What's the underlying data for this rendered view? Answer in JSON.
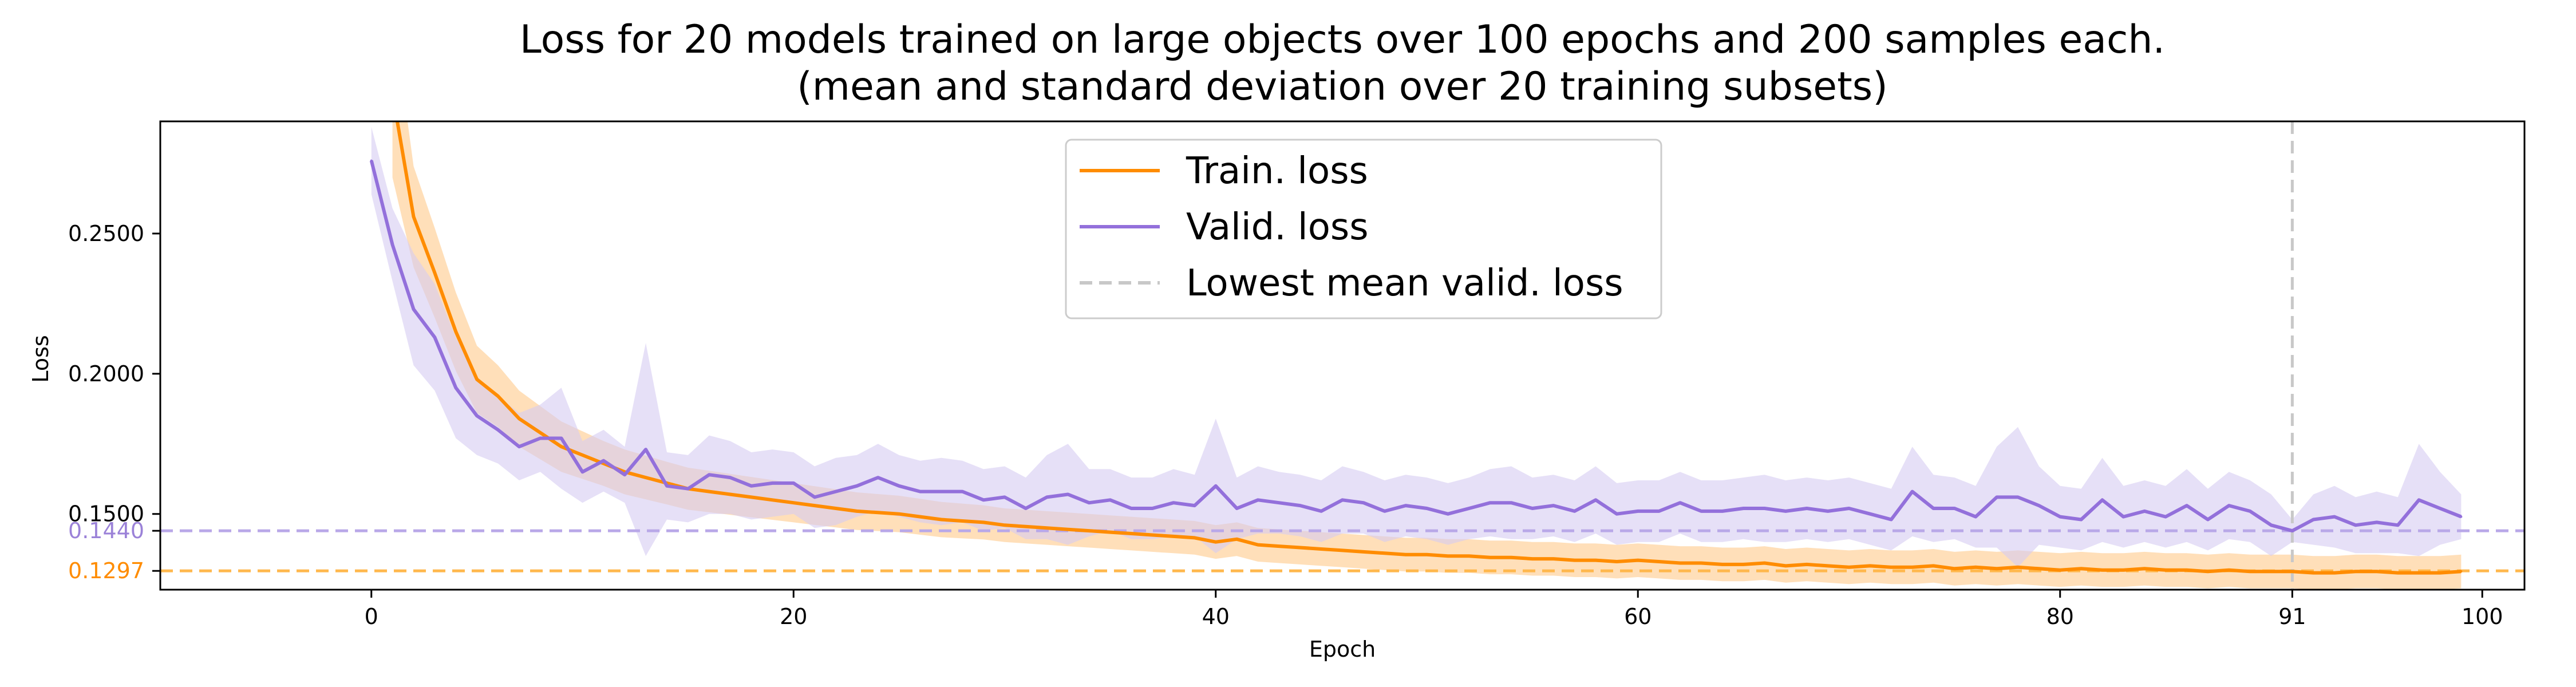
{
  "chart_data": {
    "type": "line",
    "title_line1": "Loss for 20 models trained on large objects over 100 epochs and 200 samples each.",
    "title_line2": "(mean and standard deviation over 20 training subsets)",
    "xlabel": "Epoch",
    "ylabel": "Loss",
    "xlim": [
      -10,
      102
    ],
    "ylim": [
      0.123,
      0.29
    ],
    "x_ticks": [
      0,
      20,
      40,
      60,
      80,
      91,
      100
    ],
    "x_tick_labels": [
      "0",
      "20",
      "40",
      "60",
      "80",
      "91",
      "100"
    ],
    "y_ticks": [
      0.25,
      0.2,
      0.15
    ],
    "y_tick_labels": [
      "0.2500",
      "0.2000",
      "0.1500"
    ],
    "y_ref_ticks": [
      {
        "label": "0.1440",
        "value": 0.144,
        "color": "#9b82d8"
      },
      {
        "label": "0.1297",
        "value": 0.1297,
        "color": "#ff8c00"
      }
    ],
    "grid": false,
    "legend_placement": "top-center",
    "legend": [
      {
        "label": "Train. loss",
        "color": "#ff8c00",
        "style": "solid"
      },
      {
        "label": "Valid. loss",
        "color": "#9370db",
        "style": "solid"
      },
      {
        "label": "Lowest mean valid. loss",
        "color": "#c8c8c8",
        "style": "dashed"
      }
    ],
    "hlines": [
      {
        "value": 0.144,
        "color": "#b9a8e8",
        "style": "dashed"
      },
      {
        "value": 0.1297,
        "color": "#ffb84d",
        "style": "dashed"
      }
    ],
    "vlines": [
      {
        "value": 91,
        "color": "#c8c8c8",
        "style": "dashed"
      }
    ],
    "series": [
      {
        "name": "Train. loss",
        "color": "#ff8c00",
        "band_color": "#ffc98a",
        "x": [
          1,
          2,
          3,
          4,
          5,
          6,
          7,
          8,
          9,
          10,
          11,
          12,
          13,
          14,
          15,
          16,
          17,
          18,
          19,
          20,
          21,
          22,
          23,
          24,
          25,
          26,
          27,
          28,
          29,
          30,
          31,
          32,
          33,
          34,
          35,
          36,
          37,
          38,
          39,
          40,
          41,
          42,
          43,
          44,
          45,
          46,
          47,
          48,
          49,
          50,
          51,
          52,
          53,
          54,
          55,
          56,
          57,
          58,
          59,
          60,
          61,
          62,
          63,
          64,
          65,
          66,
          67,
          68,
          69,
          70,
          71,
          72,
          73,
          74,
          75,
          76,
          77,
          78,
          79,
          80,
          81,
          82,
          83,
          84,
          85,
          86,
          87,
          88,
          89,
          90,
          91,
          92,
          93,
          94,
          95,
          96,
          97,
          98,
          99
        ],
        "y": [
          0.3,
          0.256,
          0.236,
          0.215,
          0.198,
          0.192,
          0.184,
          0.179,
          0.174,
          0.171,
          0.168,
          0.165,
          0.163,
          0.161,
          0.159,
          0.158,
          0.157,
          0.156,
          0.155,
          0.154,
          0.153,
          0.152,
          0.151,
          0.1505,
          0.15,
          0.149,
          0.148,
          0.1475,
          0.147,
          0.146,
          0.1455,
          0.145,
          0.1445,
          0.144,
          0.1435,
          0.143,
          0.1425,
          0.142,
          0.1415,
          0.14,
          0.141,
          0.139,
          0.1385,
          0.138,
          0.1375,
          0.137,
          0.1365,
          0.136,
          0.1355,
          0.1355,
          0.135,
          0.135,
          0.1345,
          0.1345,
          0.134,
          0.134,
          0.1335,
          0.1335,
          0.133,
          0.1335,
          0.133,
          0.1325,
          0.1325,
          0.132,
          0.132,
          0.1325,
          0.1315,
          0.132,
          0.1315,
          0.131,
          0.1315,
          0.131,
          0.131,
          0.1315,
          0.1305,
          0.131,
          0.1305,
          0.131,
          0.1305,
          0.13,
          0.1305,
          0.13,
          0.13,
          0.1305,
          0.13,
          0.13,
          0.1295,
          0.13,
          0.1295,
          0.1295,
          0.1295,
          0.129,
          0.129,
          0.1295,
          0.1295,
          0.129,
          0.129,
          0.129,
          0.1295
        ],
        "std": [
          0.03,
          0.018,
          0.016,
          0.014,
          0.012,
          0.011,
          0.01,
          0.0095,
          0.009,
          0.0085,
          0.008,
          0.008,
          0.0078,
          0.0076,
          0.0075,
          0.0074,
          0.0073,
          0.0072,
          0.0071,
          0.007,
          0.0069,
          0.0068,
          0.0067,
          0.0066,
          0.0065,
          0.0064,
          0.0063,
          0.0062,
          0.0061,
          0.006,
          0.006,
          0.006,
          0.006,
          0.006,
          0.006,
          0.006,
          0.006,
          0.006,
          0.006,
          0.006,
          0.006,
          0.006,
          0.006,
          0.006,
          0.006,
          0.006,
          0.006,
          0.006,
          0.006,
          0.006,
          0.006,
          0.006,
          0.006,
          0.006,
          0.006,
          0.006,
          0.006,
          0.006,
          0.006,
          0.006,
          0.006,
          0.006,
          0.006,
          0.006,
          0.006,
          0.006,
          0.006,
          0.006,
          0.006,
          0.006,
          0.006,
          0.006,
          0.006,
          0.006,
          0.006,
          0.006,
          0.006,
          0.006,
          0.006,
          0.006,
          0.006,
          0.006,
          0.006,
          0.006,
          0.006,
          0.006,
          0.006,
          0.006,
          0.006,
          0.006,
          0.006,
          0.006,
          0.006,
          0.006,
          0.006,
          0.006,
          0.006,
          0.006,
          0.006
        ]
      },
      {
        "name": "Valid. loss",
        "color": "#9370db",
        "band_color": "#d6cbf2",
        "x": [
          0,
          1,
          2,
          3,
          4,
          5,
          6,
          7,
          8,
          9,
          10,
          11,
          12,
          13,
          14,
          15,
          16,
          17,
          18,
          19,
          20,
          21,
          22,
          23,
          24,
          25,
          26,
          27,
          28,
          29,
          30,
          31,
          32,
          33,
          34,
          35,
          36,
          37,
          38,
          39,
          40,
          41,
          42,
          43,
          44,
          45,
          46,
          47,
          48,
          49,
          50,
          51,
          52,
          53,
          54,
          55,
          56,
          57,
          58,
          59,
          60,
          61,
          62,
          63,
          64,
          65,
          66,
          67,
          68,
          69,
          70,
          71,
          72,
          73,
          74,
          75,
          76,
          77,
          78,
          79,
          80,
          81,
          82,
          83,
          84,
          85,
          86,
          87,
          88,
          89,
          90,
          91,
          92,
          93,
          94,
          95,
          96,
          97,
          98,
          99
        ],
        "y": [
          0.276,
          0.246,
          0.223,
          0.213,
          0.195,
          0.185,
          0.18,
          0.174,
          0.177,
          0.177,
          0.165,
          0.169,
          0.164,
          0.173,
          0.16,
          0.159,
          0.164,
          0.163,
          0.16,
          0.161,
          0.161,
          0.156,
          0.158,
          0.16,
          0.163,
          0.16,
          0.158,
          0.158,
          0.158,
          0.155,
          0.156,
          0.152,
          0.156,
          0.157,
          0.154,
          0.155,
          0.152,
          0.152,
          0.154,
          0.153,
          0.16,
          0.152,
          0.155,
          0.154,
          0.153,
          0.151,
          0.155,
          0.154,
          0.151,
          0.153,
          0.152,
          0.15,
          0.152,
          0.154,
          0.154,
          0.152,
          0.153,
          0.151,
          0.155,
          0.15,
          0.151,
          0.151,
          0.154,
          0.151,
          0.151,
          0.152,
          0.152,
          0.151,
          0.152,
          0.151,
          0.152,
          0.15,
          0.148,
          0.158,
          0.152,
          0.152,
          0.149,
          0.156,
          0.156,
          0.153,
          0.149,
          0.148,
          0.155,
          0.149,
          0.151,
          0.149,
          0.153,
          0.148,
          0.153,
          0.151,
          0.146,
          0.144,
          0.148,
          0.149,
          0.146,
          0.147,
          0.146,
          0.155,
          0.152,
          0.149
        ],
        "std": [
          0.012,
          0.013,
          0.02,
          0.019,
          0.018,
          0.014,
          0.012,
          0.012,
          0.012,
          0.018,
          0.011,
          0.011,
          0.01,
          0.038,
          0.012,
          0.012,
          0.014,
          0.013,
          0.012,
          0.012,
          0.011,
          0.011,
          0.012,
          0.011,
          0.012,
          0.011,
          0.011,
          0.012,
          0.011,
          0.011,
          0.011,
          0.011,
          0.015,
          0.018,
          0.012,
          0.011,
          0.011,
          0.011,
          0.012,
          0.011,
          0.024,
          0.011,
          0.012,
          0.011,
          0.011,
          0.011,
          0.012,
          0.011,
          0.011,
          0.011,
          0.011,
          0.011,
          0.011,
          0.012,
          0.013,
          0.011,
          0.011,
          0.011,
          0.012,
          0.011,
          0.011,
          0.011,
          0.011,
          0.011,
          0.011,
          0.011,
          0.012,
          0.011,
          0.011,
          0.011,
          0.011,
          0.011,
          0.011,
          0.016,
          0.012,
          0.011,
          0.011,
          0.018,
          0.025,
          0.014,
          0.011,
          0.011,
          0.015,
          0.011,
          0.011,
          0.011,
          0.013,
          0.011,
          0.012,
          0.011,
          0.011,
          0.004,
          0.009,
          0.011,
          0.01,
          0.011,
          0.01,
          0.02,
          0.013,
          0.008
        ]
      }
    ]
  }
}
